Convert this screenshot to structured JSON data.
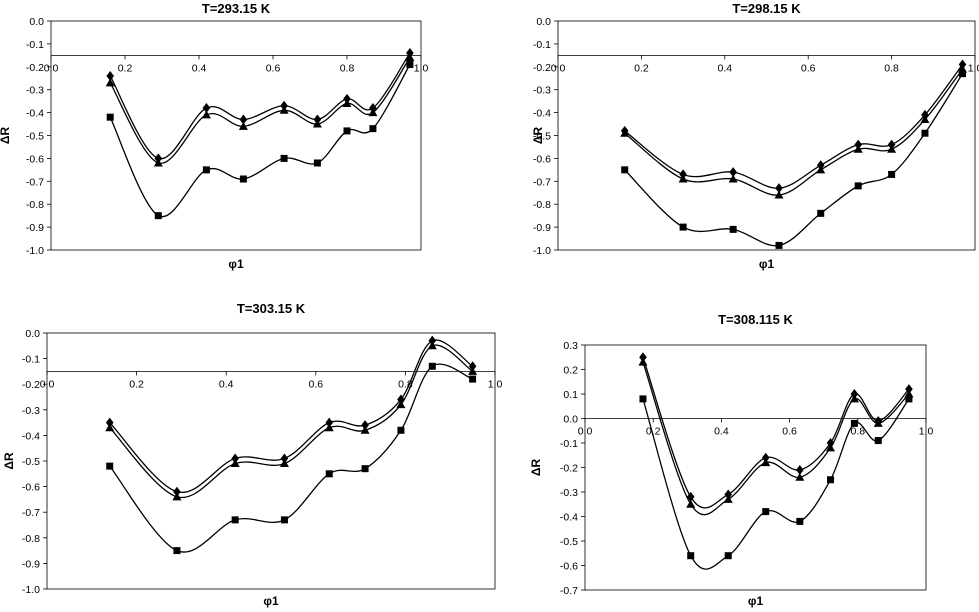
{
  "chart_data": [
    {
      "type": "line",
      "title": "T=293.15 K",
      "xlabel": "φ1",
      "ylabel": "ΔR",
      "xlim": [
        0,
        1
      ],
      "ylim": [
        -1.0,
        0.0
      ],
      "x_ticks": [
        "0.0",
        "0.2",
        "0.4",
        "0.6",
        "0.8",
        "1.0"
      ],
      "y_ticks": [
        "0.0",
        "-0.1",
        "-0.2",
        "-0.3",
        "-0.4",
        "-0.5",
        "-0.6",
        "-0.7",
        "-0.8",
        "-0.9",
        "-1.0"
      ],
      "x_axis_at": -0.15,
      "grid": false,
      "x": [
        0.16,
        0.29,
        0.42,
        0.52,
        0.63,
        0.72,
        0.8,
        0.87,
        0.97
      ],
      "series": [
        {
          "marker": "diamond",
          "values": [
            -0.24,
            -0.6,
            -0.38,
            -0.43,
            -0.37,
            -0.43,
            -0.34,
            -0.38,
            -0.14
          ]
        },
        {
          "marker": "triangle",
          "values": [
            -0.27,
            -0.62,
            -0.41,
            -0.46,
            -0.39,
            -0.45,
            -0.36,
            -0.4,
            -0.16
          ]
        },
        {
          "marker": "square",
          "values": [
            -0.42,
            -0.85,
            -0.65,
            -0.69,
            -0.6,
            -0.62,
            -0.48,
            -0.47,
            -0.19
          ]
        }
      ]
    },
    {
      "type": "line",
      "title": "T=298.15 K",
      "xlabel": "φ1",
      "ylabel": "ΔR",
      "xlim": [
        0,
        1
      ],
      "ylim": [
        -1.0,
        0.0
      ],
      "x_ticks": [
        "0.0",
        "0.2",
        "0.4",
        "0.6",
        "0.8",
        "1.0"
      ],
      "y_ticks": [
        "0.0",
        "-0.1",
        "-0.2",
        "-0.3",
        "-0.4",
        "-0.5",
        "-0.6",
        "-0.7",
        "-0.8",
        "-0.9",
        "-1.0"
      ],
      "x_axis_at": -0.15,
      "grid": false,
      "x": [
        0.16,
        0.3,
        0.42,
        0.53,
        0.63,
        0.72,
        0.8,
        0.88,
        0.97
      ],
      "series": [
        {
          "marker": "diamond",
          "values": [
            -0.48,
            -0.67,
            -0.66,
            -0.73,
            -0.63,
            -0.54,
            -0.54,
            -0.41,
            -0.19
          ]
        },
        {
          "marker": "triangle",
          "values": [
            -0.49,
            -0.69,
            -0.69,
            -0.76,
            -0.65,
            -0.56,
            -0.56,
            -0.43,
            -0.21
          ]
        },
        {
          "marker": "square",
          "values": [
            -0.65,
            -0.9,
            -0.91,
            -0.98,
            -0.84,
            -0.72,
            -0.67,
            -0.49,
            -0.23
          ]
        }
      ]
    },
    {
      "type": "line",
      "title": "T=303.15 K",
      "xlabel": "φ1",
      "ylabel": "ΔR",
      "xlim": [
        0,
        1
      ],
      "ylim": [
        -1.0,
        0.0
      ],
      "x_ticks": [
        "0.0",
        "0.2",
        "0.4",
        "0.6",
        "0.8",
        "1.0"
      ],
      "y_ticks": [
        "0.0",
        "-0.1",
        "-0.2",
        "-0.3",
        "-0.4",
        "-0.5",
        "-0.6",
        "-0.7",
        "-0.8",
        "-0.9",
        "-1.0"
      ],
      "x_axis_at": -0.15,
      "grid": false,
      "x": [
        0.14,
        0.29,
        0.42,
        0.53,
        0.63,
        0.71,
        0.79,
        0.86,
        0.95
      ],
      "series": [
        {
          "marker": "diamond",
          "values": [
            -0.35,
            -0.62,
            -0.49,
            -0.49,
            -0.35,
            -0.36,
            -0.26,
            -0.03,
            -0.13
          ]
        },
        {
          "marker": "triangle",
          "values": [
            -0.37,
            -0.64,
            -0.51,
            -0.51,
            -0.37,
            -0.38,
            -0.28,
            -0.05,
            -0.15
          ]
        },
        {
          "marker": "square",
          "values": [
            -0.52,
            -0.85,
            -0.73,
            -0.73,
            -0.55,
            -0.53,
            -0.38,
            -0.13,
            -0.18
          ]
        }
      ]
    },
    {
      "type": "line",
      "title": "T=308.115 K",
      "xlabel": "φ1",
      "ylabel": "ΔR",
      "xlim": [
        0,
        1
      ],
      "ylim": [
        -0.7,
        0.3
      ],
      "x_ticks": [
        "0.0",
        "0.2",
        "0.4",
        "0.6",
        "0.8",
        "1.0"
      ],
      "y_ticks": [
        "0.3",
        "0.2",
        "0.1",
        "0.0",
        "-0.1",
        "-0.2",
        "-0.3",
        "-0.4",
        "-0.5",
        "-0.6",
        "-0.7"
      ],
      "x_axis_at": 0.0,
      "grid": false,
      "x": [
        0.17,
        0.31,
        0.42,
        0.53,
        0.63,
        0.72,
        0.79,
        0.86,
        0.95
      ],
      "series": [
        {
          "marker": "diamond",
          "values": [
            0.25,
            -0.32,
            -0.31,
            -0.16,
            -0.21,
            -0.1,
            0.1,
            -0.01,
            0.12
          ]
        },
        {
          "marker": "triangle",
          "values": [
            0.23,
            -0.35,
            -0.33,
            -0.18,
            -0.24,
            -0.12,
            0.08,
            -0.02,
            0.1
          ]
        },
        {
          "marker": "square",
          "values": [
            0.08,
            -0.56,
            -0.56,
            -0.38,
            -0.42,
            -0.25,
            -0.02,
            -0.09,
            0.08
          ]
        }
      ]
    }
  ]
}
